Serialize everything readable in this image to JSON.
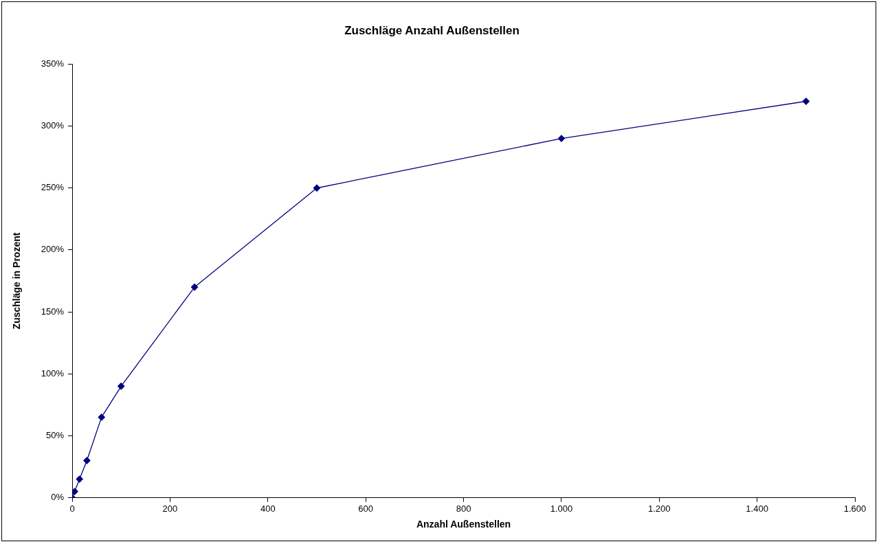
{
  "chart_data": {
    "type": "line",
    "title": "Zuschläge Anzahl Außenstellen",
    "xlabel": "Anzahl Außenstellen",
    "ylabel": "Zuschläge in Prozent",
    "x": [
      0,
      5,
      15,
      30,
      60,
      100,
      250,
      500,
      1000,
      1500
    ],
    "series": [
      {
        "color": "#000080",
        "values": [
          0,
          5,
          15,
          30,
          65,
          90,
          170,
          250,
          290,
          320
        ]
      }
    ],
    "xlim": [
      0,
      1600
    ],
    "xticks": [
      0,
      200,
      400,
      600,
      800,
      {
        "value": 1000,
        "label": "1.000"
      },
      {
        "value": 1200,
        "label": "1.200"
      },
      {
        "value": 1400,
        "label": "1.400"
      },
      {
        "value": 1600,
        "label": "1.600"
      }
    ],
    "ylim": [
      0,
      350
    ],
    "yticks": [
      {
        "value": 0,
        "label": "0%"
      },
      {
        "value": 50,
        "label": "50%"
      },
      {
        "value": 100,
        "label": "100%"
      },
      {
        "value": 150,
        "label": "150%"
      },
      {
        "value": 200,
        "label": "200%"
      },
      {
        "value": 250,
        "label": "250%"
      },
      {
        "value": 300,
        "label": "300%"
      },
      {
        "value": 350,
        "label": "350%"
      }
    ],
    "grid": false,
    "legend": false,
    "marker": "diamond",
    "line_style": "solid"
  }
}
